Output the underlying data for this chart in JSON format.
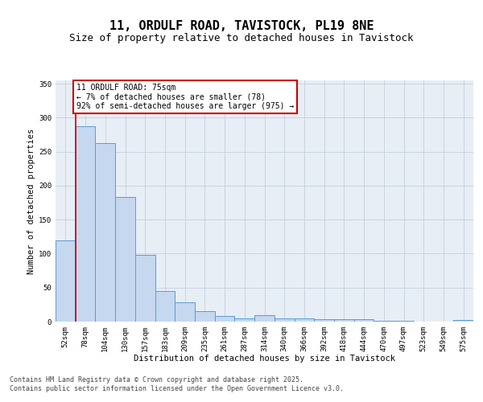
{
  "title": "11, ORDULF ROAD, TAVISTOCK, PL19 8NE",
  "subtitle": "Size of property relative to detached houses in Tavistock",
  "xlabel": "Distribution of detached houses by size in Tavistock",
  "ylabel": "Number of detached properties",
  "categories": [
    "52sqm",
    "78sqm",
    "104sqm",
    "130sqm",
    "157sqm",
    "183sqm",
    "209sqm",
    "235sqm",
    "261sqm",
    "287sqm",
    "314sqm",
    "340sqm",
    "366sqm",
    "392sqm",
    "418sqm",
    "444sqm",
    "470sqm",
    "497sqm",
    "523sqm",
    "549sqm",
    "575sqm"
  ],
  "values": [
    120,
    287,
    263,
    183,
    98,
    45,
    28,
    15,
    8,
    5,
    10,
    5,
    5,
    4,
    4,
    3,
    1,
    1,
    0,
    0,
    2
  ],
  "bar_color": "#c5d8f0",
  "bar_edge_color": "#5b9bd5",
  "grid_color": "#c8d4e0",
  "background_color": "#e8eef5",
  "annotation_text": "11 ORDULF ROAD: 75sqm\n← 7% of detached houses are smaller (78)\n92% of semi-detached houses are larger (975) →",
  "annotation_box_color": "#ffffff",
  "annotation_box_edge": "#cc0000",
  "vline_color": "#cc0000",
  "ylim": [
    0,
    355
  ],
  "yticks": [
    0,
    50,
    100,
    150,
    200,
    250,
    300,
    350
  ],
  "footer": "Contains HM Land Registry data © Crown copyright and database right 2025.\nContains public sector information licensed under the Open Government Licence v3.0.",
  "title_fontsize": 11,
  "subtitle_fontsize": 9,
  "label_fontsize": 7.5,
  "tick_fontsize": 6.5,
  "ann_fontsize": 7,
  "footer_fontsize": 6
}
